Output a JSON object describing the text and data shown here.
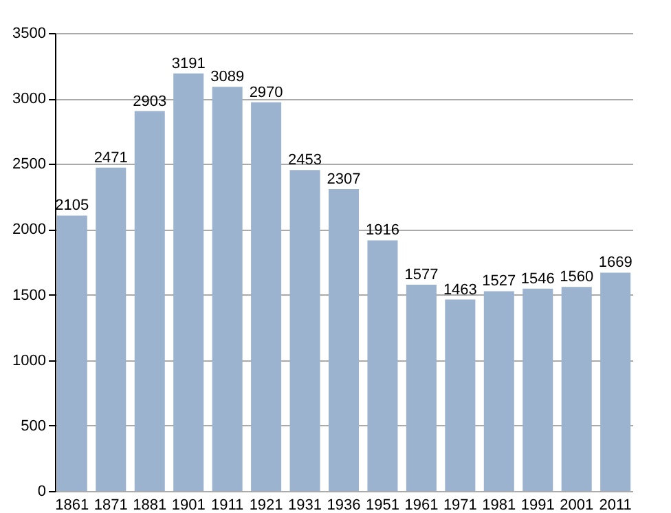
{
  "chart_data": {
    "type": "bar",
    "categories": [
      "1861",
      "1871",
      "1881",
      "1901",
      "1911",
      "1921",
      "1931",
      "1936",
      "1951",
      "1961",
      "1971",
      "1981",
      "1991",
      "2001",
      "2011"
    ],
    "values": [
      2105,
      2471,
      2903,
      3191,
      3089,
      2970,
      2453,
      2307,
      1916,
      1577,
      1463,
      1527,
      1546,
      1560,
      1669
    ],
    "color": "#9bb3cf",
    "ylim": [
      0,
      3500
    ],
    "yticks": [
      0,
      500,
      1000,
      1500,
      2000,
      2500,
      3000,
      3500
    ],
    "grid": "y",
    "data_labels": true
  }
}
